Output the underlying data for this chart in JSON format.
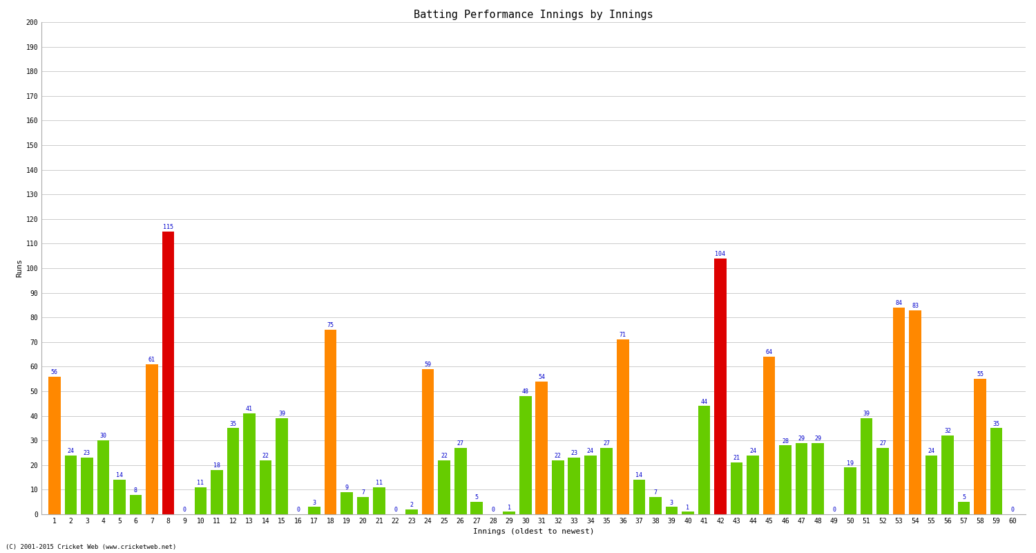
{
  "title": "Batting Performance Innings by Innings",
  "xlabel": "Innings (oldest to newest)",
  "ylabel": "Runs",
  "background_color": "#ffffff",
  "grid_color": "#cccccc",
  "ylim": [
    0,
    200
  ],
  "yticks": [
    0,
    10,
    20,
    30,
    40,
    50,
    60,
    70,
    80,
    90,
    100,
    110,
    120,
    130,
    140,
    150,
    160,
    170,
    180,
    190,
    200
  ],
  "innings": [
    1,
    2,
    3,
    4,
    5,
    6,
    7,
    8,
    9,
    10,
    11,
    12,
    13,
    14,
    15,
    16,
    17,
    18,
    19,
    20,
    21,
    22,
    23,
    24,
    25,
    26,
    27,
    28,
    29,
    30,
    31,
    32,
    33,
    34,
    35,
    36,
    37,
    38,
    39,
    40,
    41,
    42,
    43,
    44,
    45,
    46,
    47,
    48,
    49,
    50,
    51,
    52,
    53,
    54,
    55,
    56,
    57,
    58,
    59,
    60
  ],
  "values": [
    56,
    24,
    23,
    30,
    14,
    8,
    61,
    115,
    0,
    11,
    18,
    35,
    41,
    22,
    39,
    0,
    3,
    75,
    9,
    7,
    11,
    0,
    2,
    59,
    22,
    27,
    5,
    0,
    1,
    48,
    54,
    22,
    23,
    24,
    27,
    71,
    14,
    7,
    3,
    1,
    44,
    104,
    21,
    24,
    64,
    28,
    29,
    29,
    0,
    19,
    39,
    27,
    84,
    83,
    24,
    32,
    5,
    55,
    35,
    0
  ],
  "note": "(C) 2001-2015 Cricket Web (www.cricketweb.net)",
  "label_color": "#0000cc",
  "label_fontsize": 6.0,
  "title_fontsize": 11,
  "axis_label_fontsize": 8,
  "tick_fontsize": 7,
  "color_normal": "#66cc00",
  "color_fifty": "#ff8800",
  "color_hundred": "#dd0000"
}
